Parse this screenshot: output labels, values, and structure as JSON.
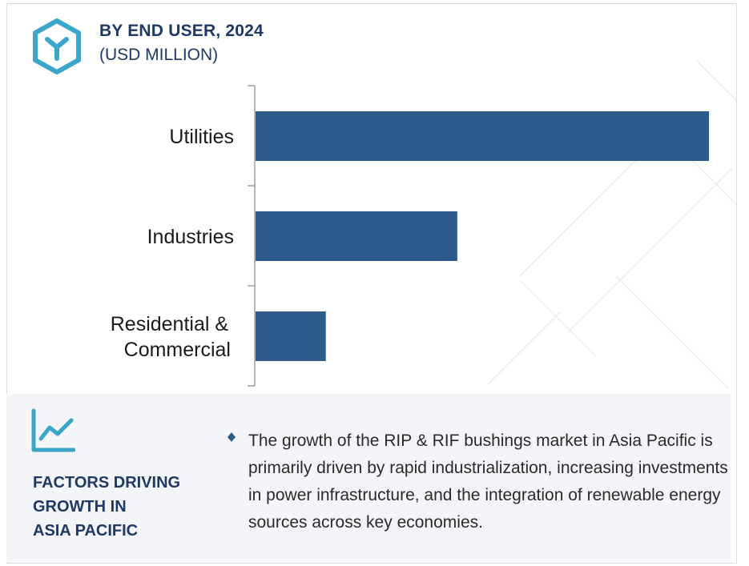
{
  "header": {
    "title": "BY END USER, 2024",
    "subtitle": "(USD MILLION)",
    "logo_icon": "hexagon-y-logo-icon"
  },
  "colors": {
    "bar": "#2c5b8c",
    "title": "#1e3a64",
    "logo": "#3aa6c9",
    "panel_bg": "#f3f5f8"
  },
  "chart_data": {
    "type": "bar",
    "orientation": "horizontal",
    "title": "BY END USER, 2024",
    "subtitle": "(USD MILLION)",
    "categories": [
      "Utilities",
      "Industries",
      "Residential & Commercial"
    ],
    "category_lines": [
      [
        "Utilities"
      ],
      [
        "Industries"
      ],
      [
        "Residential &",
        "Commercial"
      ]
    ],
    "values": [
      100,
      44.5,
      15.5
    ],
    "value_note": "relative scale; no numeric axis shown",
    "xlabel": "",
    "ylabel": "",
    "xlim": [
      0,
      100
    ],
    "grid": false,
    "legend": "none"
  },
  "panel": {
    "icon": "line-chart-trend-icon",
    "heading_lines": [
      "FACTORS DRIVING",
      "GROWTH IN",
      "ASIA PACIFIC"
    ],
    "bullet_icon": "diamond-bullet-icon",
    "text": "The growth of the RIP & RIF bushings market in Asia Pacific is primarily driven by rapid industrialization, increasing investments in power infrastructure, and the integration of renewable energy sources across key economies."
  }
}
